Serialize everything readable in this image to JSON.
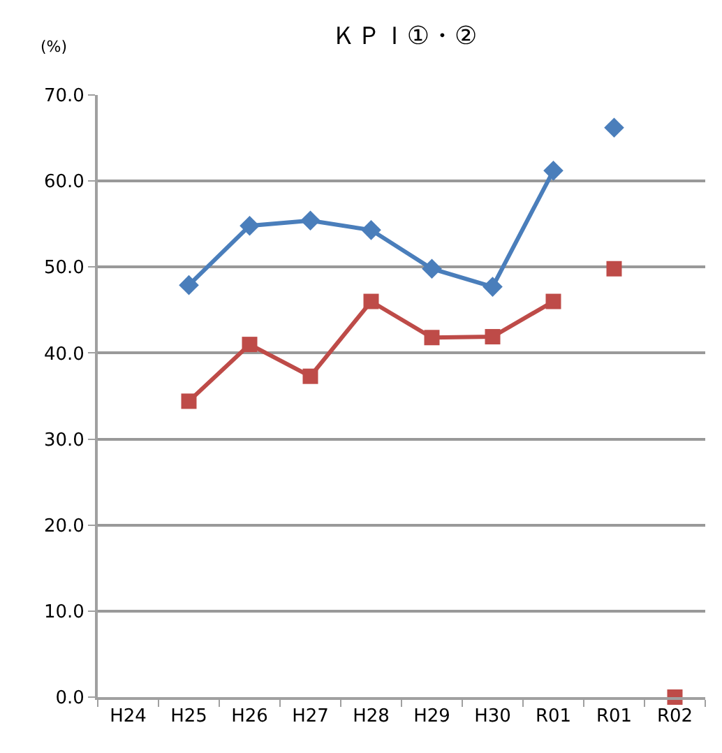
{
  "chart_data": {
    "type": "line",
    "title": "ＫＰＩ①・②",
    "ylabel": "(%)",
    "categories": [
      "H24",
      "H25",
      "H26",
      "H27",
      "H28",
      "H29",
      "H30",
      "R01",
      "R01",
      "R02"
    ],
    "series": [
      {
        "type": "line",
        "marker": "diamond",
        "color": "#4a7ebb",
        "values": [
          null,
          47.9,
          54.8,
          55.4,
          54.3,
          49.8,
          47.7,
          61.2,
          null,
          null
        ]
      },
      {
        "type": "line",
        "marker": "square",
        "color": "#be4b48",
        "values": [
          null,
          34.4,
          41.0,
          37.3,
          46.0,
          41.8,
          41.9,
          46.0,
          null,
          null
        ]
      },
      {
        "type": "scatter",
        "marker": "diamond",
        "color": "#4a7ebb",
        "values": [
          null,
          null,
          null,
          null,
          null,
          null,
          null,
          null,
          66.2,
          null
        ]
      },
      {
        "type": "scatter",
        "marker": "square",
        "color": "#be4b48",
        "values": [
          null,
          null,
          null,
          null,
          null,
          null,
          null,
          null,
          49.8,
          0.0
        ]
      }
    ],
    "ylim": [
      0,
      70
    ],
    "yticks": [
      {
        "value": 0,
        "label": "0.0"
      },
      {
        "value": 10,
        "label": "10.0"
      },
      {
        "value": 20,
        "label": "20.0"
      },
      {
        "value": 30,
        "label": "30.0"
      },
      {
        "value": 40,
        "label": "40.0"
      },
      {
        "value": 50,
        "label": "50.0"
      },
      {
        "value": 60,
        "label": "60.0"
      },
      {
        "value": 70,
        "label": "70.0"
      }
    ],
    "grid": "y"
  }
}
